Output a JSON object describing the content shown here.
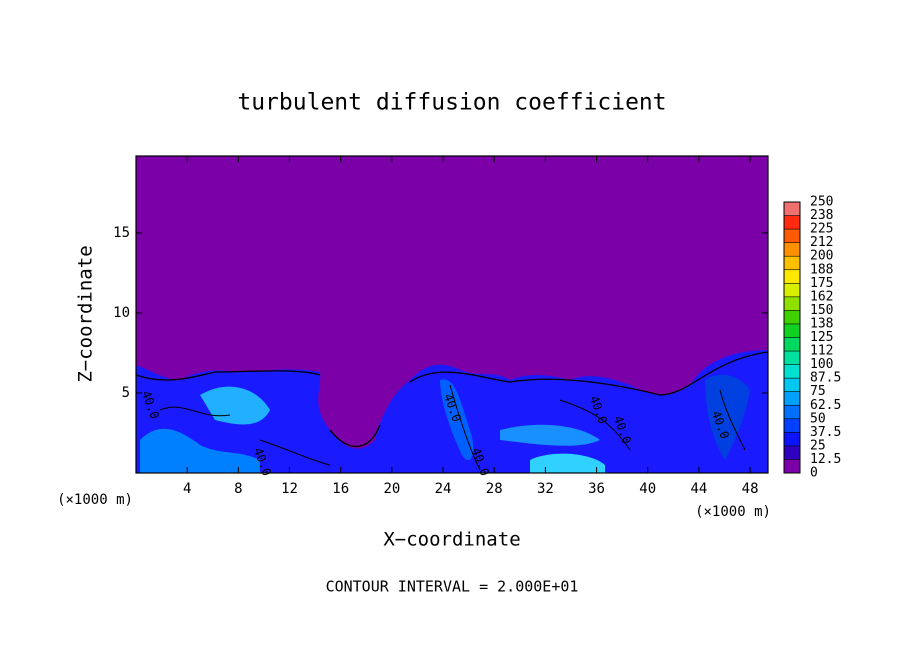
{
  "chart_data": {
    "type": "contour",
    "title": "turbulent diffusion coefficient",
    "xlabel": "X−coordinate",
    "ylabel": "Z−coordinate",
    "x_unit": "(×1000 m)",
    "footnote": "CONTOUR INTERVAL = 2.000E+01",
    "xlim": [
      0,
      49.4
    ],
    "ylim": [
      0,
      19.8
    ],
    "xticks": [
      4,
      8,
      12,
      16,
      20,
      24,
      28,
      32,
      36,
      40,
      44,
      48
    ],
    "yticks": [
      5,
      10,
      15
    ],
    "contour_labels": [
      "40.0",
      "40.0",
      "40.0",
      "40.0",
      "40.0",
      "40.0",
      "40.0"
    ],
    "colorbar": {
      "levels": [
        0,
        12.5,
        25,
        37.5,
        50,
        62.5,
        75,
        87.5,
        100,
        112,
        125,
        138,
        150,
        162,
        175,
        188,
        200,
        212,
        225,
        238,
        250
      ],
      "colors": [
        "#7b00a8",
        "#3000c0",
        "#0a14ff",
        "#0040ff",
        "#0070ff",
        "#00a0ff",
        "#00c8f0",
        "#00e0d0",
        "#00e0a0",
        "#00d860",
        "#10d020",
        "#40d000",
        "#90e000",
        "#d8f000",
        "#ffe800",
        "#ffc000",
        "#ff9000",
        "#ff5a00",
        "#ff2a10",
        "#f07070"
      ]
    }
  }
}
